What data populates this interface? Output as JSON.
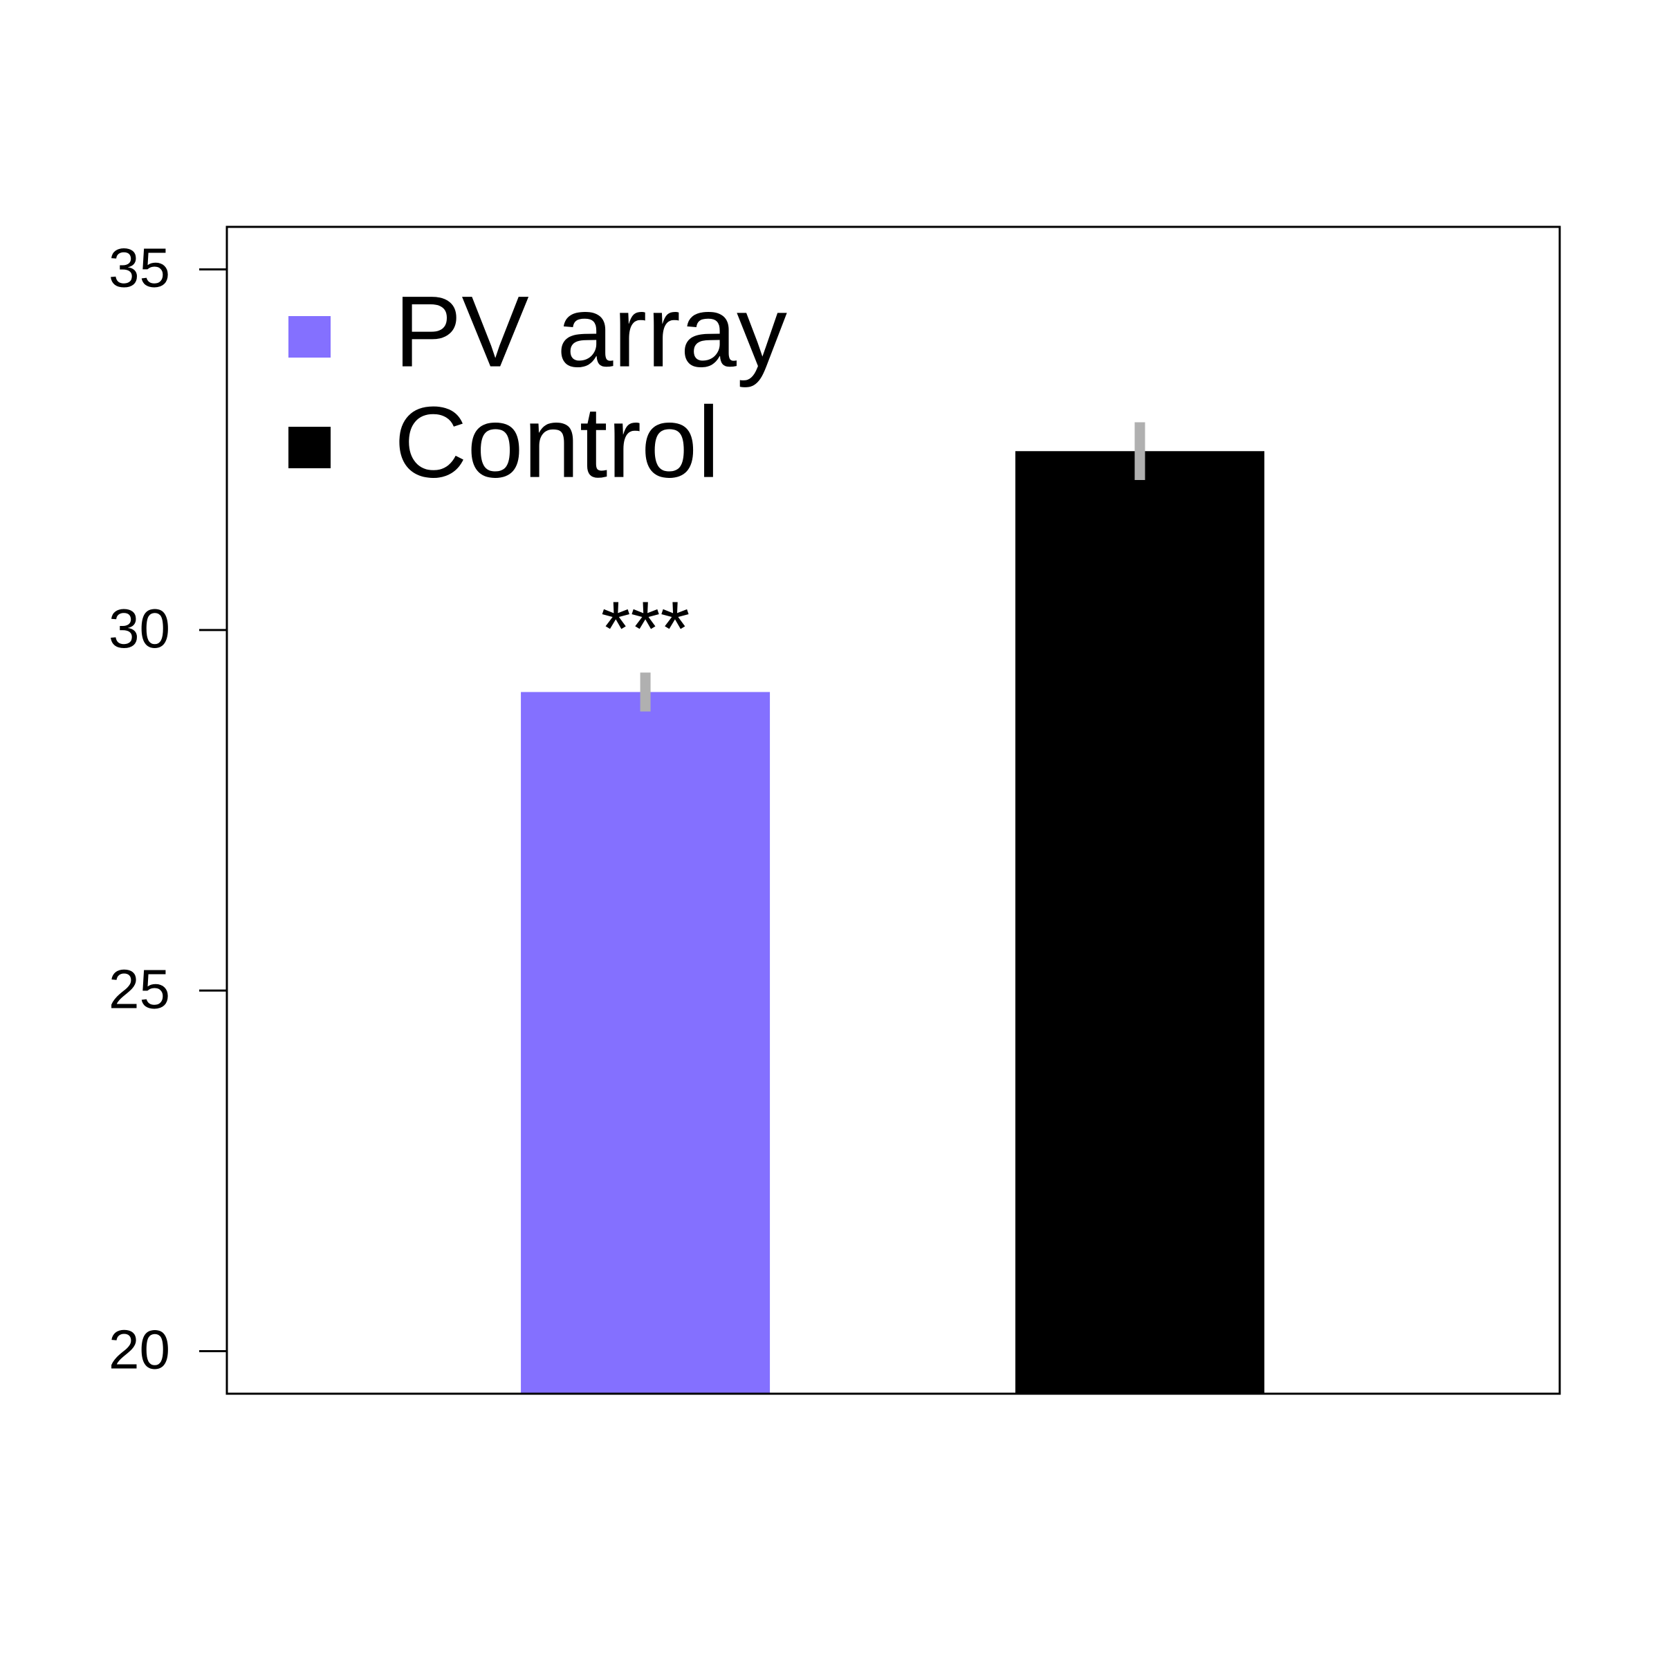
{
  "chart_data": {
    "type": "bar",
    "series": [
      {
        "name": "PV array",
        "color": "#8470ff",
        "values": [
          29.14
        ],
        "errors": [
          0.27
        ]
      },
      {
        "name": "Control",
        "color": "#000000",
        "values": [
          32.48
        ],
        "errors": [
          0.4
        ]
      }
    ],
    "annotations": [
      {
        "text": "***",
        "series": 0
      }
    ],
    "error_color": "#b0b0b0",
    "ylim": [
      19.41,
      35.59
    ],
    "yticks": [
      20,
      25,
      30,
      35
    ],
    "grid": false,
    "legend": "top-left"
  }
}
